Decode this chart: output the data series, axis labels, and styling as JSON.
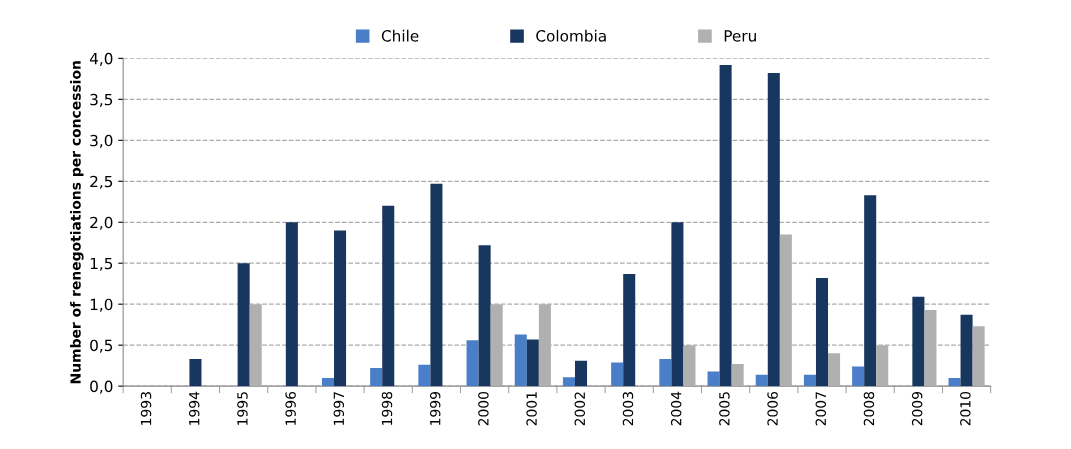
{
  "chart_data": {
    "type": "bar",
    "ylabel": "Number of renegotiations per concession",
    "categories": [
      "1993",
      "1994",
      "1995",
      "1996",
      "1997",
      "1998",
      "1999",
      "2000",
      "2001",
      "2002",
      "2003",
      "2004",
      "2005",
      "2006",
      "2007",
      "2008",
      "2009",
      "2010"
    ],
    "series": [
      {
        "name": "Chile",
        "color": "#4a7ec8",
        "values": [
          0,
          0,
          0,
          0,
          0.1,
          0.22,
          0.26,
          0.56,
          0.63,
          0.11,
          0.29,
          0.33,
          0.18,
          0.14,
          0.14,
          0.24,
          0,
          0.1
        ]
      },
      {
        "name": "Colombia",
        "color": "#17375e",
        "values": [
          0,
          0.33,
          1.5,
          2.0,
          1.9,
          2.2,
          2.47,
          1.72,
          0.57,
          0.31,
          1.37,
          2.0,
          3.92,
          3.82,
          1.32,
          2.33,
          1.09,
          0.87
        ]
      },
      {
        "name": "Peru",
        "color": "#b0b0b0",
        "values": [
          0,
          0,
          1.0,
          0,
          0,
          0,
          0,
          1.0,
          1.0,
          0,
          0,
          0.5,
          0.27,
          1.85,
          0.4,
          0.5,
          0.93,
          0.73
        ]
      }
    ],
    "ylim": [
      0,
      4.0
    ],
    "yticks": [
      {
        "value": 0,
        "label": "0,0"
      },
      {
        "value": 0.5,
        "label": "0,5"
      },
      {
        "value": 1.0,
        "label": "1,0"
      },
      {
        "value": 1.5,
        "label": "1,5"
      },
      {
        "value": 2.0,
        "label": "2,0"
      },
      {
        "value": 2.5,
        "label": "2,5"
      },
      {
        "value": 3.0,
        "label": "3,0"
      },
      {
        "value": 3.5,
        "label": "3,5"
      },
      {
        "value": 4.0,
        "label": "4,0"
      }
    ],
    "grid": "y",
    "legend": "top"
  }
}
